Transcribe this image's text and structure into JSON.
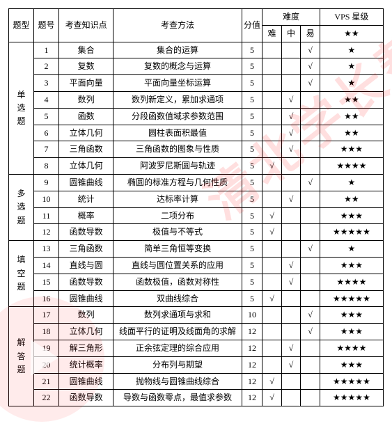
{
  "header": {
    "type": "题型",
    "num": "题号",
    "topic": "考查知识点",
    "method": "考查方法",
    "score": "分值",
    "difficulty_group": "难度",
    "diff_hard": "难",
    "diff_mid": "中",
    "diff_easy": "易",
    "vps_group": "VPS 星级",
    "vps_sub": "★★"
  },
  "groups": [
    {
      "label": "单选题",
      "rows": [
        {
          "num": "1",
          "topic": "集合",
          "method": "集合的运算",
          "score": "5",
          "hard": "",
          "mid": "",
          "easy": "√",
          "vps": "★"
        },
        {
          "num": "2",
          "topic": "复数",
          "method": "复数的概念与运算",
          "score": "5",
          "hard": "",
          "mid": "",
          "easy": "√",
          "vps": "★"
        },
        {
          "num": "3",
          "topic": "平面向量",
          "method": "平面向量坐标运算",
          "score": "5",
          "hard": "",
          "mid": "",
          "easy": "√",
          "vps": "★"
        },
        {
          "num": "4",
          "topic": "数列",
          "method": "数列新定义，累加求通项",
          "score": "5",
          "hard": "",
          "mid": "√",
          "easy": "",
          "vps": "★★"
        },
        {
          "num": "5",
          "topic": "函数",
          "method": "分段函数值域求参数范围",
          "score": "5",
          "hard": "",
          "mid": "√",
          "easy": "",
          "vps": "★★"
        },
        {
          "num": "6",
          "topic": "立体几何",
          "method": "圆柱表面积最值",
          "score": "5",
          "hard": "",
          "mid": "√",
          "easy": "",
          "vps": "★★"
        },
        {
          "num": "7",
          "topic": "三角函数",
          "method": "三角函数的图象与性质",
          "score": "5",
          "hard": "",
          "mid": "√",
          "easy": "",
          "vps": "★★★"
        },
        {
          "num": "8",
          "topic": "立体几何",
          "method": "阿波罗尼斯圆与轨迹",
          "score": "5",
          "hard": "√",
          "mid": "",
          "easy": "",
          "vps": "★★★★"
        }
      ]
    },
    {
      "label": "多选题",
      "rows": [
        {
          "num": "9",
          "topic": "圆锥曲线",
          "method": "椭圆的标准方程与几何性质",
          "score": "5",
          "hard": "",
          "mid": "",
          "easy": "√",
          "vps": "★"
        },
        {
          "num": "10",
          "topic": "统计",
          "method": "达标率计算",
          "score": "5",
          "hard": "",
          "mid": "√",
          "easy": "",
          "vps": "★★"
        },
        {
          "num": "11",
          "topic": "概率",
          "method": "二项分布",
          "score": "5",
          "hard": "√",
          "mid": "",
          "easy": "",
          "vps": "★★★"
        },
        {
          "num": "12",
          "topic": "函数导数",
          "method": "极值与不等式",
          "score": "5",
          "hard": "√",
          "mid": "",
          "easy": "",
          "vps": "★★★★★"
        }
      ]
    },
    {
      "label": "填空题",
      "rows": [
        {
          "num": "13",
          "topic": "三角函数",
          "method": "简单三角恒等变换",
          "score": "5",
          "hard": "",
          "mid": "",
          "easy": "√",
          "vps": "★"
        },
        {
          "num": "14",
          "topic": "直线与圆",
          "method": "直线与圆位置关系的应用",
          "score": "5",
          "hard": "",
          "mid": "√",
          "easy": "",
          "vps": "★★★"
        },
        {
          "num": "15",
          "topic": "函数导数",
          "method": "函数极值，函数对称性",
          "score": "5",
          "hard": "",
          "mid": "√",
          "easy": "",
          "vps": "★★★★"
        },
        {
          "num": "16",
          "topic": "圆锥曲线",
          "method": "双曲线综合",
          "score": "5",
          "hard": "√",
          "mid": "",
          "easy": "",
          "vps": "★★★★★"
        }
      ]
    },
    {
      "label": "解答题",
      "rows": [
        {
          "num": "17",
          "topic": "数列",
          "method": "数列求通项与求和",
          "score": "10",
          "hard": "",
          "mid": "",
          "easy": "√",
          "vps": "★★★"
        },
        {
          "num": "18",
          "topic": "立体几何",
          "method": "线面平行的证明及线面角的求解",
          "score": "12",
          "hard": "",
          "mid": "",
          "easy": "√",
          "vps": "★★★"
        },
        {
          "num": "19",
          "topic": "解三角形",
          "method": "正余弦定理的综合应用",
          "score": "12",
          "hard": "",
          "mid": "√",
          "easy": "",
          "vps": "★★★★"
        },
        {
          "num": "20",
          "topic": "统计概率",
          "method": "分布列与期望",
          "score": "12",
          "hard": "",
          "mid": "√",
          "easy": "",
          "vps": "★★★"
        },
        {
          "num": "21",
          "topic": "圆锥曲线",
          "method": "抛物线与圆锥曲线综合",
          "score": "12",
          "hard": "√",
          "mid": "",
          "easy": "",
          "vps": "★★★★★"
        },
        {
          "num": "22",
          "topic": "函数导数",
          "method": "导数与函数零点，最值求参数",
          "score": "12",
          "hard": "√",
          "mid": "",
          "easy": "",
          "vps": "★★★★★"
        }
      ]
    }
  ],
  "watermark": {
    "text": "清北学长帮"
  }
}
